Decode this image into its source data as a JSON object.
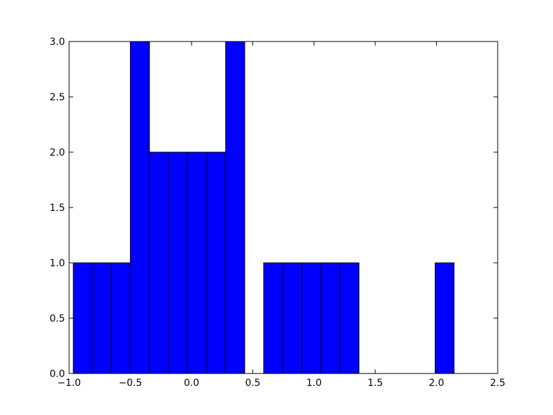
{
  "chart_data": {
    "type": "histogram",
    "bins": [
      -0.966,
      -0.811,
      -0.655,
      -0.5,
      -0.344,
      -0.189,
      -0.033,
      0.123,
      0.278,
      0.434,
      0.589,
      0.745,
      0.9,
      1.056,
      1.211,
      1.367,
      1.522,
      1.678,
      1.833,
      1.989,
      2.144
    ],
    "values": [
      1,
      1,
      1,
      3,
      2,
      2,
      2,
      2,
      3,
      0,
      1,
      1,
      1,
      1,
      1,
      0,
      0,
      0,
      0,
      1
    ],
    "color": "#0000ff",
    "xlim": [
      -1,
      2.5
    ],
    "ylim": [
      0,
      3
    ],
    "xticks": [
      {
        "value": -1,
        "label": "−1.0"
      },
      {
        "value": -0.5,
        "label": "−0.5"
      },
      {
        "value": 0,
        "label": "0.0"
      },
      0.5,
      {
        "value": 1,
        "label": "1.0"
      },
      1.5,
      {
        "value": 2,
        "label": "2.0"
      },
      2.5
    ],
    "yticks": [
      {
        "value": 0,
        "label": "0.0"
      },
      0.5,
      {
        "value": 1,
        "label": "1.0"
      },
      1.5,
      {
        "value": 2,
        "label": "2.0"
      },
      2.5,
      {
        "value": 3,
        "label": "3.0"
      }
    ]
  }
}
